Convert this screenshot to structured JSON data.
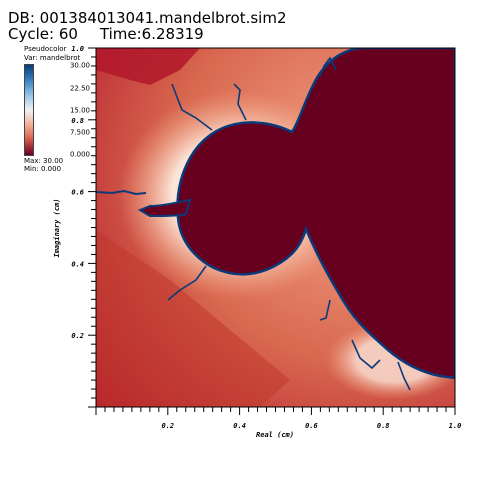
{
  "header": {
    "db_line": "DB: 001384013041.mandelbrot.sim2",
    "cycle_label": "Cycle: 60",
    "time_label": "Time:6.28319"
  },
  "legend": {
    "title": "Pseudocolor",
    "variable": "Var: mandelbrot",
    "ticks": [
      "30.00",
      "22.50",
      "15.00",
      "7.500",
      "0.000"
    ],
    "max_label": "Max: 30.00",
    "min_label": "Min: 0.000",
    "colors": [
      "#0a3a7a",
      "#3b86c4",
      "#f2f2f2",
      "#d6604d",
      "#67001f"
    ]
  },
  "chart_data": {
    "type": "heatmap",
    "variable": "mandelbrot",
    "value_range": [
      0,
      30
    ],
    "xlabel": "Real (cm)",
    "ylabel": "Imaginary (cm)",
    "xlim": [
      0,
      1.0
    ],
    "ylim": [
      0,
      1.0
    ],
    "x_tick_labels": [
      "0.2",
      "0.4",
      "0.6",
      "0.8",
      "1.0"
    ],
    "y_tick_labels": [
      "0.2",
      "0.4",
      "0.6",
      "0.8",
      "1.0"
    ],
    "interior_color": "#67001f",
    "boundary_color": "#0a3a7a"
  }
}
